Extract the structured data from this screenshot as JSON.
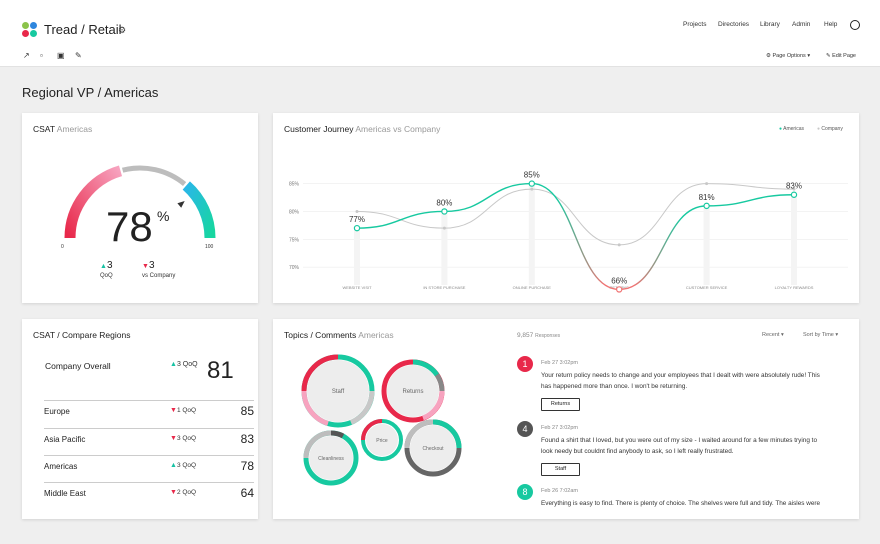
{
  "app": {
    "title": "Tread / Retail"
  },
  "nav": [
    "Projects",
    "Directories",
    "Library",
    "Admin",
    "Help"
  ],
  "toolbar": {
    "page_options": "Page Options",
    "edit_page": "Edit Page"
  },
  "page_title": "Regional VP  /  Americas",
  "csat": {
    "title": "CSAT",
    "subtitle": "Americas",
    "value": "78",
    "pct": "%",
    "fraction": 0.78,
    "min": "0",
    "max": "100",
    "qoq_value": "3",
    "qoq_label": "QoQ",
    "vs_value": "3",
    "vs_label": "vs Company"
  },
  "journey": {
    "title": "Customer Journey",
    "subtitle": "Americas vs Company",
    "legend": [
      "Americas",
      "Company"
    ]
  },
  "chart_data": {
    "type": "line",
    "categories": [
      "WEBSITE VISIT",
      "IN STORE PURCHASE",
      "ONLINE PURCHASE",
      "RETURNS",
      "CUSTOMER SERVICE",
      "LOYALTY REWARDS"
    ],
    "series": [
      {
        "name": "Americas",
        "values": [
          77,
          80,
          85,
          66,
          81,
          83
        ]
      },
      {
        "name": "Company",
        "values": [
          80,
          77,
          84,
          74,
          85,
          84
        ]
      }
    ],
    "data_labels": [
      "77%",
      "80%",
      "85%",
      "66%",
      "81%",
      "83%"
    ],
    "y_ticks": [
      "85%",
      "80%",
      "75%",
      "70%"
    ],
    "ylim": [
      65,
      87
    ],
    "colors": {
      "Americas": "#17c9a0",
      "Company": "#c8c8c8",
      "dip": "#f07373"
    }
  },
  "compare": {
    "title": "CSAT  /  Compare Regions",
    "overall": {
      "name": "Company Overall",
      "delta": "3",
      "delta_label": "QoQ",
      "value": "81"
    },
    "rows": [
      {
        "name": "Europe",
        "delta": "1",
        "delta_label": "QoQ",
        "value": "85",
        "dir": "down"
      },
      {
        "name": "Asia Pacific",
        "delta": "3",
        "delta_label": "QoQ",
        "value": "83",
        "dir": "down"
      },
      {
        "name": "Americas",
        "delta": "3",
        "delta_label": "QoQ",
        "value": "78",
        "dir": "up"
      },
      {
        "name": "Middle East",
        "delta": "2",
        "delta_label": "QoQ",
        "value": "64",
        "dir": "down"
      }
    ]
  },
  "topics": {
    "title": "Topics / Comments",
    "subtitle": "Americas",
    "responses": "9,857",
    "responses_label": "Responses",
    "sort1": "Recent",
    "sort2": "Sort by Time",
    "bubbles": [
      "Staff",
      "Returns",
      "Price",
      "Cleanliness",
      "Checkout"
    ]
  },
  "comments": [
    {
      "badge": "1",
      "date": "Feb 27  3:02pm",
      "text": "Your return policy needs to change and your employees that I dealt with were absolutely rude!  This has happened more than once.  I won't be returning.",
      "tag": "Returns",
      "color": "#e8284a"
    },
    {
      "badge": "4",
      "date": "Feb 27  3:02pm",
      "text": "Found a shirt that I loved, but you were out of my size - I waited around for a few minutes trying to look needy but couldnt find anybody to ask, so I left really frustrated.",
      "tag": "Staff",
      "color": "#555555"
    },
    {
      "badge": "8",
      "date": "Feb 26  7:02am",
      "text": "Everything is easy to find. There is plenty of choice. The shelves were full and tidy. The aisles were",
      "tag": "",
      "color": "#17c9a0"
    }
  ]
}
